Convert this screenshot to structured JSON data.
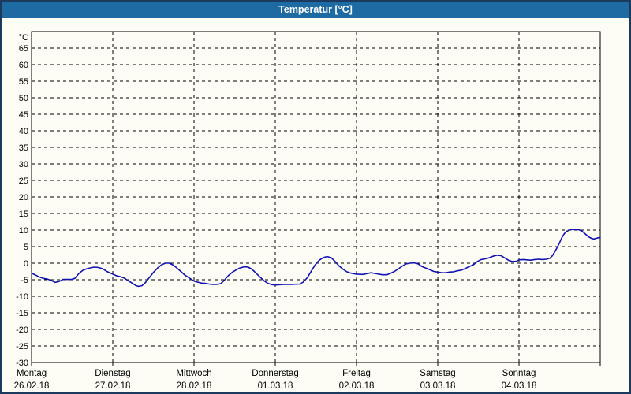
{
  "window": {
    "title": "Temperatur [°C]"
  },
  "colors": {
    "titlebar_bg": "#1e6ba3",
    "title_text": "#ffffff",
    "window_border": "#1b3a5e",
    "window_bg": "#fdfdf6",
    "line": "#1212b2",
    "grid": "#000000",
    "axis": "#000000",
    "text": "#000000"
  },
  "chart_data": {
    "type": "line",
    "title": "Temperatur [°C]",
    "unit_label": "°C",
    "ylabel": "Temperatur",
    "ylim": [
      -30,
      70
    ],
    "y_ticks": [
      65,
      60,
      55,
      50,
      45,
      40,
      35,
      30,
      25,
      20,
      15,
      10,
      5,
      0,
      -5,
      -10,
      -15,
      -20,
      -25,
      -30
    ],
    "grid": "dashed",
    "legend": "none",
    "x_range_hours": [
      0,
      168
    ],
    "hours_per_day": 24,
    "x_days": [
      {
        "name": "Montag",
        "date": "26.02.18"
      },
      {
        "name": "Dienstag",
        "date": "27.02.18"
      },
      {
        "name": "Mittwoch",
        "date": "28.02.18"
      },
      {
        "name": "Donnerstag",
        "date": "01.03.18"
      },
      {
        "name": "Freitag",
        "date": "02.03.18"
      },
      {
        "name": "Samstag",
        "date": "03.03.18"
      },
      {
        "name": "Sonntag",
        "date": "04.03.18"
      }
    ],
    "series": [
      {
        "name": "Temperatur",
        "points": [
          [
            0,
            -3.0
          ],
          [
            1.2,
            -3.6
          ],
          [
            2.3,
            -4.2
          ],
          [
            3.5,
            -4.6
          ],
          [
            4.7,
            -4.8
          ],
          [
            5.8,
            -5.2
          ],
          [
            7,
            -5.8
          ],
          [
            8.2,
            -5.5
          ],
          [
            9.3,
            -4.9
          ],
          [
            11.7,
            -4.9
          ],
          [
            12.8,
            -4.6
          ],
          [
            14,
            -3.1
          ],
          [
            15.1,
            -2.2
          ],
          [
            16.3,
            -1.7
          ],
          [
            17.5,
            -1.4
          ],
          [
            18.6,
            -1.2
          ],
          [
            19.8,
            -1.3
          ],
          [
            21,
            -1.7
          ],
          [
            22.1,
            -2.4
          ],
          [
            23.3,
            -3.0
          ],
          [
            24,
            -3.3
          ],
          [
            25.1,
            -3.8
          ],
          [
            26.3,
            -4.1
          ],
          [
            27.4,
            -4.5
          ],
          [
            28.6,
            -5.3
          ],
          [
            29.8,
            -6.1
          ],
          [
            30.9,
            -6.8
          ],
          [
            31.6,
            -7.0
          ],
          [
            32.6,
            -6.8
          ],
          [
            33.7,
            -5.8
          ],
          [
            34.9,
            -4.2
          ],
          [
            36.1,
            -2.7
          ],
          [
            37.2,
            -1.5
          ],
          [
            38.4,
            -0.5
          ],
          [
            39.5,
            0.0
          ],
          [
            40.7,
            0.0
          ],
          [
            41.9,
            -0.6
          ],
          [
            43,
            -1.5
          ],
          [
            44.2,
            -2.6
          ],
          [
            45.3,
            -3.6
          ],
          [
            46.5,
            -4.4
          ],
          [
            48,
            -5.4
          ],
          [
            48.9,
            -5.7
          ],
          [
            50.1,
            -6.0
          ],
          [
            51.2,
            -6.1
          ],
          [
            52.4,
            -6.3
          ],
          [
            53.6,
            -6.4
          ],
          [
            54.7,
            -6.4
          ],
          [
            55.9,
            -6.2
          ],
          [
            57,
            -5.1
          ],
          [
            58.2,
            -3.7
          ],
          [
            59.4,
            -2.7
          ],
          [
            60.5,
            -2.0
          ],
          [
            61.7,
            -1.4
          ],
          [
            62.9,
            -1.1
          ],
          [
            64,
            -1.2
          ],
          [
            65.2,
            -1.9
          ],
          [
            66.3,
            -3.0
          ],
          [
            67.5,
            -4.2
          ],
          [
            68.7,
            -5.3
          ],
          [
            69.8,
            -6.1
          ],
          [
            71,
            -6.5
          ],
          [
            72,
            -6.6
          ],
          [
            73.3,
            -6.5
          ],
          [
            74.5,
            -6.4
          ],
          [
            76.8,
            -6.4
          ],
          [
            79.2,
            -6.3
          ],
          [
            80.3,
            -5.7
          ],
          [
            81.5,
            -4.3
          ],
          [
            82.7,
            -2.3
          ],
          [
            83.8,
            -0.5
          ],
          [
            85,
            0.9
          ],
          [
            86.2,
            1.7
          ],
          [
            87.3,
            2.0
          ],
          [
            88.5,
            1.7
          ],
          [
            89.6,
            0.6
          ],
          [
            90.8,
            -0.8
          ],
          [
            92,
            -1.8
          ],
          [
            93.1,
            -2.6
          ],
          [
            94.3,
            -3.0
          ],
          [
            96,
            -3.3
          ],
          [
            97.9,
            -3.4
          ],
          [
            100.2,
            -2.9
          ],
          [
            101.4,
            -3.1
          ],
          [
            102.5,
            -3.3
          ],
          [
            103.7,
            -3.5
          ],
          [
            104.9,
            -3.5
          ],
          [
            106,
            -3.1
          ],
          [
            107.2,
            -2.5
          ],
          [
            108.4,
            -1.7
          ],
          [
            109.5,
            -0.9
          ],
          [
            110.7,
            -0.2
          ],
          [
            111.8,
            0.0
          ],
          [
            113,
            0.1
          ],
          [
            114.2,
            -0.2
          ],
          [
            115.3,
            -1.0
          ],
          [
            116.5,
            -1.5
          ],
          [
            117.7,
            -2.0
          ],
          [
            118.8,
            -2.5
          ],
          [
            120,
            -2.7
          ],
          [
            121.2,
            -2.9
          ],
          [
            122.3,
            -2.9
          ],
          [
            123.5,
            -2.7
          ],
          [
            124.7,
            -2.6
          ],
          [
            125.8,
            -2.3
          ],
          [
            127,
            -2.1
          ],
          [
            128.2,
            -1.6
          ],
          [
            129.3,
            -1.0
          ],
          [
            130.5,
            -0.5
          ],
          [
            131.7,
            0.5
          ],
          [
            132.8,
            1.1
          ],
          [
            134,
            1.3
          ],
          [
            135.1,
            1.6
          ],
          [
            136.3,
            2.1
          ],
          [
            137.5,
            2.4
          ],
          [
            138.6,
            2.3
          ],
          [
            139.8,
            1.6
          ],
          [
            141,
            0.8
          ],
          [
            142.1,
            0.5
          ],
          [
            143.3,
            0.6
          ],
          [
            144,
            1.0
          ],
          [
            145.2,
            1.1
          ],
          [
            146.3,
            1.0
          ],
          [
            147.5,
            0.9
          ],
          [
            148.6,
            1.1
          ],
          [
            149.8,
            1.2
          ],
          [
            151,
            1.1
          ],
          [
            152.1,
            1.2
          ],
          [
            153.1,
            1.5
          ],
          [
            153.8,
            2.2
          ],
          [
            154.5,
            3.3
          ],
          [
            155.2,
            4.6
          ],
          [
            155.9,
            6.0
          ],
          [
            156.6,
            7.6
          ],
          [
            157.3,
            8.8
          ],
          [
            158,
            9.6
          ],
          [
            158.9,
            10.0
          ],
          [
            159.8,
            10.2
          ],
          [
            160.7,
            10.2
          ],
          [
            161.7,
            10.1
          ],
          [
            162.6,
            9.7
          ],
          [
            163.5,
            8.9
          ],
          [
            164.5,
            8.0
          ],
          [
            165.4,
            7.5
          ],
          [
            166.1,
            7.3
          ],
          [
            166.8,
            7.5
          ],
          [
            167.5,
            7.7
          ],
          [
            168,
            7.7
          ]
        ]
      }
    ]
  }
}
